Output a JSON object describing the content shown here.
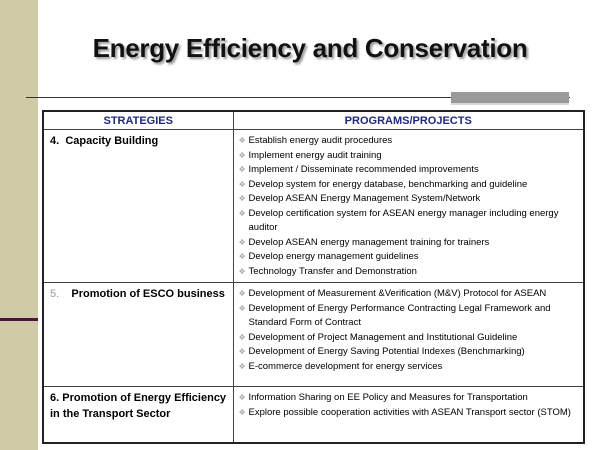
{
  "title": "Energy Efficiency and Conservation",
  "table": {
    "headers": [
      "STRATEGIES",
      "PROGRAMS/PROJECTS"
    ],
    "rows": [
      {
        "number": "4.",
        "strategy": "Capacity Building",
        "items": [
          "Establish energy audit procedures",
          "Implement energy audit training",
          "Implement / Disseminate recommended improvements",
          "Develop system for energy database, benchmarking and guideline",
          "Develop ASEAN Energy Management System/Network",
          "Develop certification system for ASEAN energy manager including energy auditor",
          "Develop ASEAN energy management training for trainers",
          "Develop energy management guidelines",
          "Technology Transfer and Demonstration"
        ]
      },
      {
        "number": "5.",
        "strategy": "Promotion of ESCO business",
        "items": [
          "Development of Measurement &Verification (M&V) Protocol for ASEAN",
          "Development of Energy Performance Contracting Legal Framework and Standard Form of Contract",
          "Development of Project Management and Institutional Guideline",
          "Development of Energy Saving Potential Indexes (Benchmarking)",
          "E-commerce development for energy services"
        ]
      },
      {
        "number": "6.",
        "strategy": "Promotion of Energy Efficiency in the Transport Sector",
        "items": [
          "Information Sharing on EE Policy and Measures for Transportation",
          "Explore possible cooperation activities with ASEAN Transport sector (STOM)"
        ]
      }
    ]
  }
}
